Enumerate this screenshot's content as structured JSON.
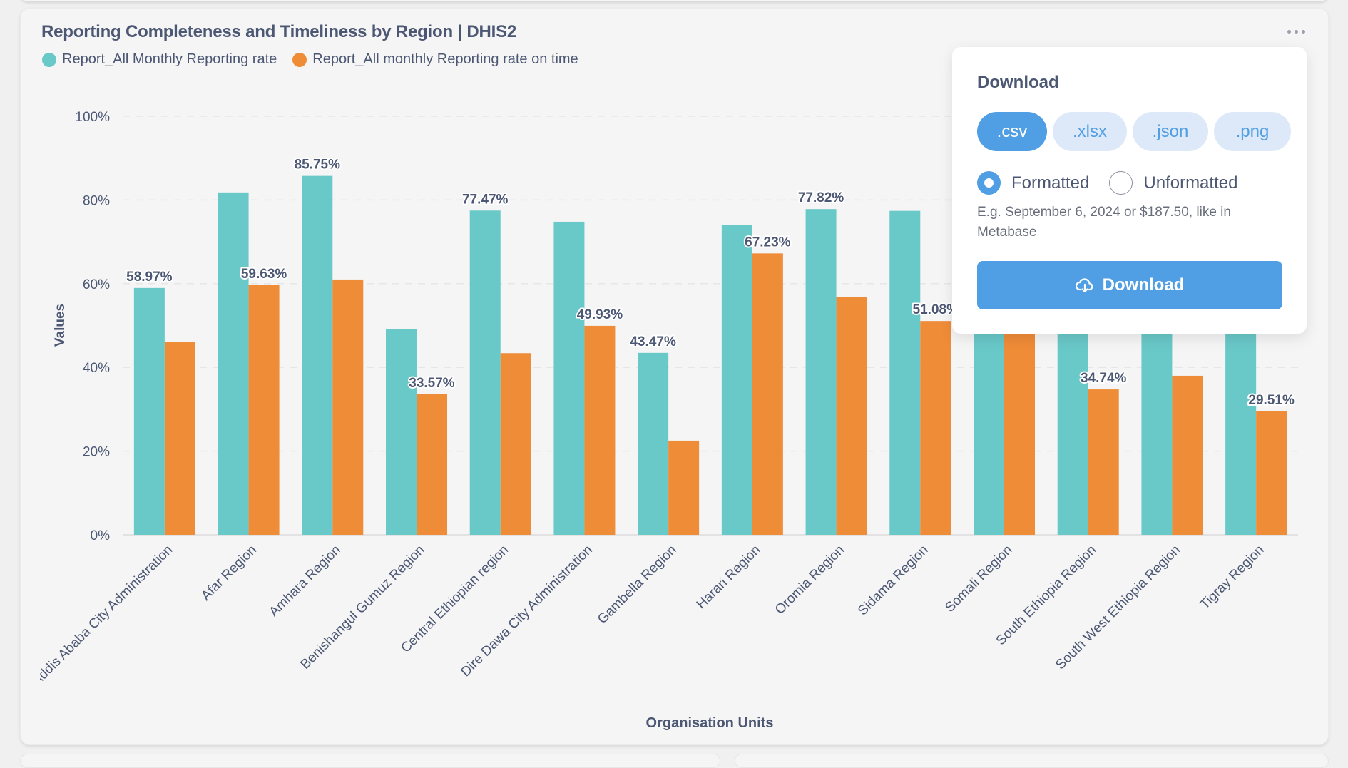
{
  "card": {
    "title": "Reporting Completeness and Timeliness by Region | DHIS2",
    "menu_icon": "ellipsis-icon"
  },
  "legend": [
    {
      "label": "Report_All Monthly Reporting rate",
      "color": "#69c8c8"
    },
    {
      "label": "Report_All monthly Reporting rate on time",
      "color": "#ef8c38"
    }
  ],
  "download_popup": {
    "title": "Download",
    "formats": [
      ".csv",
      ".xlsx",
      ".json",
      ".png"
    ],
    "selected_format": ".csv",
    "options": [
      "Formatted",
      "Unformatted"
    ],
    "selected_option": "Formatted",
    "hint": "E.g. September 6, 2024 or $187.50, like in Metabase",
    "button_label": "Download",
    "button_icon": "cloud-download-icon"
  },
  "chart_data": {
    "type": "bar",
    "title": "Reporting Completeness and Timeliness by Region | DHIS2",
    "xlabel": "Organisation Units",
    "ylabel": "Values",
    "ylim": [
      0,
      100
    ],
    "yticks": [
      "0%",
      "20%",
      "40%",
      "60%",
      "80%",
      "100%"
    ],
    "grid": true,
    "legend_position": "top-left",
    "categories": [
      "Addis Ababa City Administration",
      "Afar Region",
      "Amhara Region",
      "Benishangul Gumuz Region",
      "Central Ethiopian region",
      "Dire Dawa City Administration",
      "Gambella Region",
      "Harari Region",
      "Oromia Region",
      "Sidama Region",
      "Somali Region",
      "South Ethiopia Region",
      "South West Ethiopia Region",
      "Tigray Region"
    ],
    "series": [
      {
        "name": "Report_All Monthly Reporting rate",
        "color": "#69c8c8",
        "values": [
          58.97,
          81.8,
          85.75,
          49.1,
          77.47,
          74.8,
          43.47,
          74.1,
          77.82,
          77.4,
          72.0,
          70.0,
          68.0,
          62.0
        ],
        "labels": [
          "58.97%",
          "",
          "85.75%",
          "",
          "77.47%",
          "",
          "43.47%",
          "",
          "77.82%",
          "",
          "",
          "",
          "",
          ""
        ]
      },
      {
        "name": "Report_All monthly Reporting rate on time",
        "color": "#ef8c38",
        "values": [
          46.0,
          59.63,
          61.0,
          33.57,
          43.4,
          49.93,
          22.5,
          67.23,
          56.8,
          51.08,
          52.0,
          34.74,
          38.0,
          29.51
        ],
        "labels": [
          "",
          "59.63%",
          "",
          "33.57%",
          "",
          "49.93%",
          "",
          "67.23%",
          "",
          "51.08%",
          "",
          "34.74%",
          "",
          "29.51%"
        ]
      }
    ]
  }
}
